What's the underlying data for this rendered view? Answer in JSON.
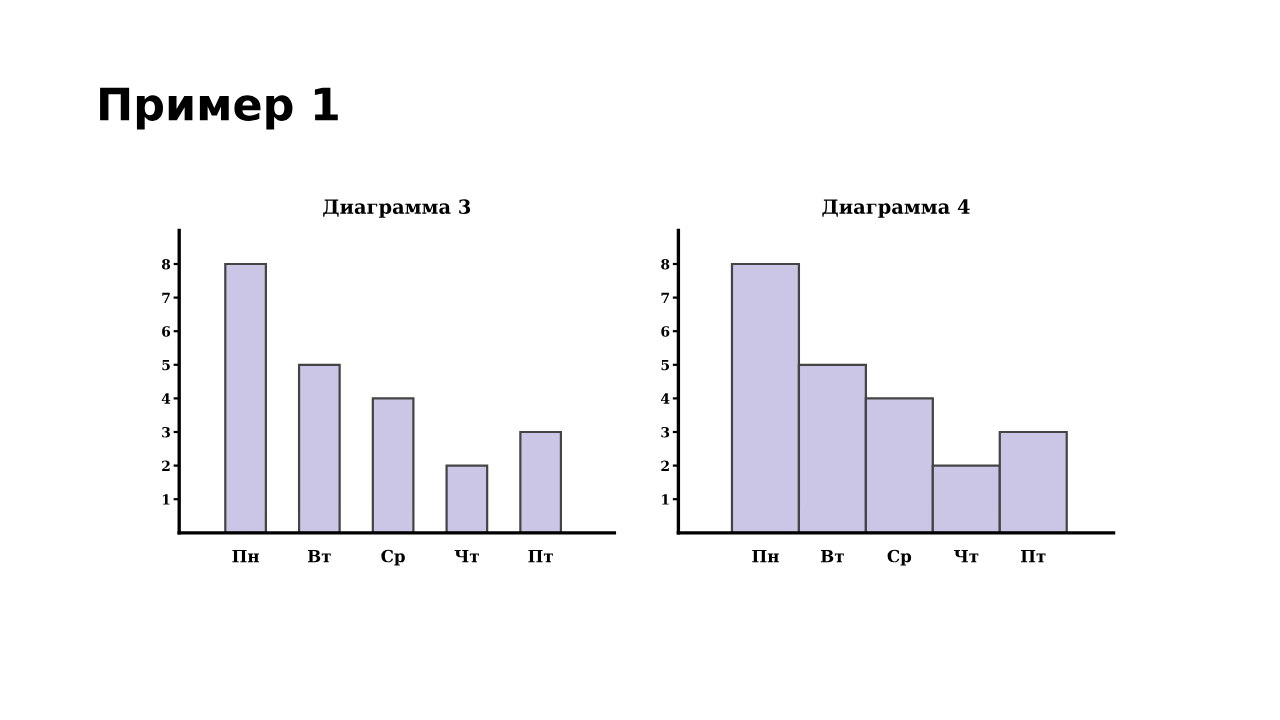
{
  "chart_data": [
    {
      "type": "bar",
      "title": "Диаграмма 3",
      "annotations": [
        "Пример 1"
      ],
      "categories": [
        "Пн",
        "Вт",
        "Ср",
        "Чт",
        "Пт"
      ],
      "values": [
        8,
        5,
        4,
        2,
        3
      ],
      "color": "#ccc6e6",
      "ylim": [
        0,
        9
      ],
      "yticks": [
        1,
        2,
        3,
        4,
        5,
        6,
        7,
        8
      ],
      "grid": false,
      "legend": false
    },
    {
      "type": "bar",
      "title": "Диаграмма 4",
      "categories": [
        "Пн",
        "Вт",
        "Ср",
        "Чт",
        "Пт"
      ],
      "values": [
        8,
        5,
        4,
        2,
        3
      ],
      "color": "#ccc6e6",
      "ylim": [
        0,
        9
      ],
      "yticks": [
        1,
        2,
        3,
        4,
        5,
        6,
        7,
        8
      ],
      "grid": false,
      "legend": false
    }
  ]
}
